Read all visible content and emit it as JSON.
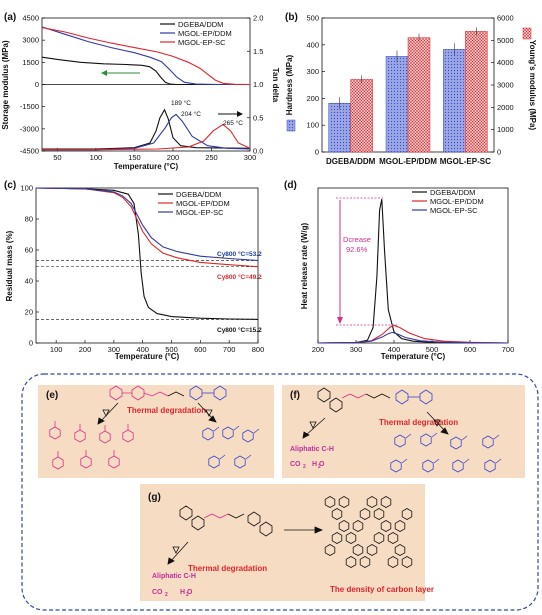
{
  "panel_labels": {
    "a": "(a)",
    "b": "(b)",
    "c": "(c)",
    "d": "(d)",
    "e": "(e)",
    "f": "(f)",
    "g": "(g)"
  },
  "colors": {
    "black": "#111111",
    "red": "#e0242a",
    "blue": "#2f3aa8",
    "panel_bg": "#f7dcc4",
    "frame": "#2f4aa6",
    "ann_mag": "#d0308f"
  },
  "chart_data": [
    {
      "id": "a",
      "type": "line",
      "xlabel": "Temperature (°C)",
      "ylabel": "Storage modulus (MPa)",
      "y2label": "Tan delta",
      "xlim": [
        30,
        300
      ],
      "ylim": [
        -4500,
        4500
      ],
      "y2lim": [
        0,
        2.0
      ],
      "xticks": [
        "50",
        "100",
        "150",
        "200",
        "250",
        "300"
      ],
      "yticks": [
        "4500",
        "3000",
        "1500",
        "0",
        "-1500",
        "-3000",
        "-4500"
      ],
      "y2ticks": [
        "2.0",
        "1.5",
        "1.0",
        "0.5",
        "0.0"
      ],
      "legend": [
        "DGEBA/DDM",
        "MGOL-EP/DDM",
        "MGOL-EP-SC"
      ],
      "annotations": [
        "189 °C",
        "204 °C",
        "265 °C"
      ],
      "series": [
        {
          "name": "DGEBA/DDM",
          "axis": "y",
          "x": [
            30,
            50,
            80,
            110,
            140,
            160,
            170,
            178,
            184,
            190,
            196,
            205,
            230,
            300
          ],
          "y": [
            1850,
            1700,
            1500,
            1400,
            1350,
            1300,
            1200,
            900,
            500,
            150,
            30,
            0,
            0,
            0
          ]
        },
        {
          "name": "MGOL-EP/DDM",
          "axis": "y",
          "x": [
            30,
            60,
            90,
            120,
            150,
            170,
            185,
            195,
            205,
            215,
            230,
            260,
            300
          ],
          "y": [
            3900,
            3400,
            2900,
            2500,
            2150,
            1850,
            1550,
            1050,
            500,
            150,
            30,
            0,
            0
          ]
        },
        {
          "name": "MGOL-EP-SC",
          "axis": "y",
          "x": [
            30,
            60,
            90,
            120,
            150,
            180,
            200,
            220,
            235,
            245,
            255,
            265,
            280,
            300
          ],
          "y": [
            3850,
            3550,
            3150,
            2800,
            2500,
            2200,
            1900,
            1500,
            1100,
            700,
            300,
            80,
            15,
            0
          ]
        },
        {
          "name": "DGEBA/DDM",
          "axis": "y2",
          "x": [
            30,
            100,
            150,
            170,
            178,
            183,
            189,
            194,
            200,
            210,
            230,
            300
          ],
          "y": [
            0.03,
            0.03,
            0.05,
            0.12,
            0.3,
            0.5,
            0.62,
            0.48,
            0.2,
            0.08,
            0.05,
            0.04
          ]
        },
        {
          "name": "MGOL-EP/DDM",
          "axis": "y2",
          "x": [
            30,
            100,
            150,
            175,
            190,
            198,
            204,
            212,
            225,
            245,
            270,
            300
          ],
          "y": [
            0.02,
            0.02,
            0.04,
            0.12,
            0.35,
            0.5,
            0.55,
            0.45,
            0.22,
            0.08,
            0.04,
            0.03
          ]
        },
        {
          "name": "MGOL-EP-SC",
          "axis": "y2",
          "x": [
            30,
            100,
            180,
            220,
            240,
            252,
            265,
            275,
            285,
            300
          ],
          "y": [
            0.02,
            0.02,
            0.03,
            0.06,
            0.15,
            0.3,
            0.4,
            0.3,
            0.12,
            0.04
          ]
        }
      ]
    },
    {
      "id": "b",
      "type": "bar",
      "categories": [
        "DGEBA/DDM",
        "MGOL-EP/DDM",
        "MGOL-EP-SC"
      ],
      "ylabel": "Hardness (MPa)",
      "y2label": "Young's modulus (MPa)",
      "ylim": [
        0,
        500
      ],
      "y2lim": [
        0,
        6000
      ],
      "yticks": [
        "0",
        "100",
        "200",
        "300",
        "400",
        "500"
      ],
      "y2ticks": [
        "0",
        "1000",
        "2000",
        "3000",
        "4000",
        "5000",
        "6000"
      ],
      "series": [
        {
          "name": "Hardness",
          "axis": "y",
          "values": [
            182,
            357,
            383
          ]
        },
        {
          "name": "Young's modulus",
          "axis": "y2",
          "values": [
            3250,
            5120,
            5400
          ]
        }
      ]
    },
    {
      "id": "c",
      "type": "line",
      "xlabel": "Temperature (°C)",
      "ylabel": "Residual mass (%)",
      "xlim": [
        30,
        800
      ],
      "ylim": [
        0,
        100
      ],
      "xticks": [
        "100",
        "200",
        "300",
        "400",
        "500",
        "600",
        "700",
        "800"
      ],
      "yticks": [
        "0",
        "20",
        "40",
        "60",
        "80",
        "100"
      ],
      "legend": [
        "DGEBA/DDM",
        "MGOL-EP/DDM",
        "MGOL-EP-SC"
      ],
      "annotations": [
        "Cy800 °C=53.2",
        "Cy800 °C=49.2",
        "Cy800 °C=15.2"
      ],
      "series": [
        {
          "name": "DGEBA/DDM",
          "x": [
            30,
            200,
            300,
            350,
            370,
            385,
            395,
            405,
            420,
            450,
            500,
            600,
            700,
            800
          ],
          "y": [
            100,
            99.5,
            98.5,
            96,
            90,
            70,
            45,
            30,
            23,
            19,
            17,
            16,
            15.5,
            15.2
          ]
        },
        {
          "name": "MGOL-EP/DDM",
          "x": [
            30,
            200,
            300,
            330,
            360,
            380,
            400,
            430,
            470,
            520,
            600,
            700,
            800
          ],
          "y": [
            100,
            99.5,
            97,
            94,
            88,
            80,
            72,
            64,
            58,
            55,
            52,
            50.5,
            49.2
          ]
        },
        {
          "name": "MGOL-EP-SC",
          "x": [
            30,
            200,
            300,
            330,
            360,
            380,
            400,
            430,
            470,
            520,
            600,
            700,
            800
          ],
          "y": [
            100,
            99.5,
            97.5,
            95,
            90,
            83,
            76,
            68,
            62,
            59,
            56,
            54.5,
            53.2
          ]
        }
      ]
    },
    {
      "id": "d",
      "type": "line",
      "xlabel": "Temperature (°C)",
      "ylabel": "Heat release rate (W/g)",
      "xlim": [
        200,
        700
      ],
      "ylim": [
        0,
        700
      ],
      "xticks": [
        "200",
        "300",
        "400",
        "500",
        "600",
        "700"
      ],
      "legend": [
        "DGEBA/DDM",
        "MGOL-EP/DDM",
        "MGOL-EP-SC"
      ],
      "annotations": [
        "Dcrease",
        "92.6%"
      ],
      "series": [
        {
          "name": "DGEBA/DDM",
          "x": [
            200,
            300,
            330,
            345,
            355,
            362,
            368,
            375,
            385,
            400,
            420,
            450,
            500,
            700
          ],
          "y": [
            0,
            2,
            12,
            70,
            300,
            600,
            650,
            420,
            150,
            50,
            20,
            8,
            3,
            0
          ]
        },
        {
          "name": "MGOL-EP/DDM",
          "x": [
            200,
            300,
            340,
            370,
            390,
            400,
            415,
            440,
            480,
            530,
            600,
            700
          ],
          "y": [
            0,
            2,
            10,
            40,
            72,
            80,
            70,
            45,
            20,
            8,
            3,
            0
          ]
        },
        {
          "name": "MGOL-EP-SC",
          "x": [
            200,
            300,
            340,
            370,
            385,
            395,
            410,
            430,
            470,
            520,
            600,
            700
          ],
          "y": [
            0,
            2,
            8,
            28,
            42,
            48,
            40,
            25,
            10,
            4,
            1,
            0
          ]
        }
      ]
    }
  ],
  "schemes": {
    "e": {
      "title": "Thermal degradation"
    },
    "f": {
      "title": "Thermal degradation",
      "product1": "Aliphatic C-H",
      "product2": "CO",
      "product3": "H O"
    },
    "g": {
      "title": "Thermal degradation",
      "product1": "Aliphatic C-H",
      "product2": "CO",
      "product3": "H O",
      "result": "The density of carbon layer"
    }
  }
}
